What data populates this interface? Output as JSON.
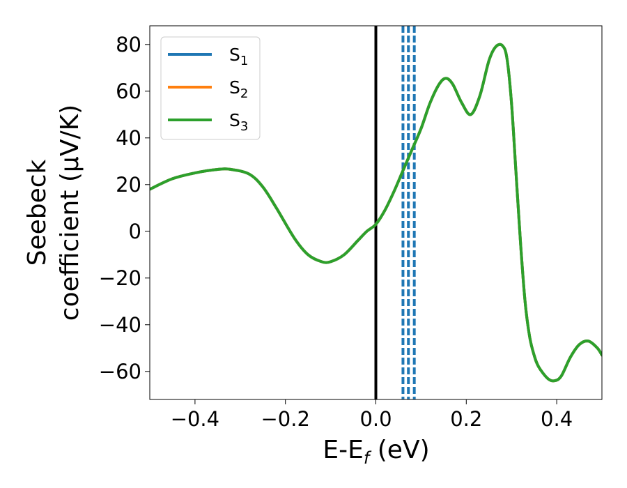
{
  "chart_data": {
    "type": "line",
    "xlabel": {
      "base": "E-E",
      "sub": "f",
      "rest": " (eV)"
    },
    "ylabel": {
      "line1": "Seebeck",
      "line2": "coefficient  (μV/K)"
    },
    "xlim": [
      -0.5,
      0.5
    ],
    "ylim": [
      -72,
      88
    ],
    "xticks": [
      -0.4,
      -0.2,
      0.0,
      0.2,
      0.4
    ],
    "xtick_labels": [
      "−0.4",
      "−0.2",
      "0.0",
      "0.2",
      "0.4"
    ],
    "yticks": [
      -60,
      -40,
      -20,
      0,
      20,
      40,
      60,
      80
    ],
    "ytick_labels": [
      "−60",
      "−40",
      "−20",
      "0",
      "20",
      "40",
      "60",
      "80"
    ],
    "grid": false,
    "legend_position": "top-left",
    "series": [
      {
        "name": "S",
        "sub": "1",
        "color": "#1f77b4",
        "x": [
          -0.5,
          -0.45,
          -0.4,
          -0.35,
          -0.32,
          -0.28,
          -0.25,
          -0.22,
          -0.18,
          -0.15,
          -0.12,
          -0.1,
          -0.07,
          -0.04,
          -0.02,
          0.0,
          0.02,
          0.04,
          0.06,
          0.08,
          0.1,
          0.12,
          0.14,
          0.155,
          0.17,
          0.19,
          0.21,
          0.23,
          0.25,
          0.265,
          0.28,
          0.29,
          0.3,
          0.31,
          0.32,
          0.33,
          0.34,
          0.35,
          0.36,
          0.38,
          0.395,
          0.41,
          0.43,
          0.45,
          0.47,
          0.49,
          0.5
        ],
        "y": [
          18,
          22.5,
          25,
          26.5,
          26.5,
          24.5,
          19,
          10,
          -3,
          -10,
          -13,
          -13,
          -10,
          -4,
          0,
          3,
          9,
          17,
          26,
          35,
          44,
          55,
          63,
          65.5,
          63,
          55,
          50,
          58,
          73,
          79,
          79.5,
          74,
          55,
          25,
          -5,
          -30,
          -45,
          -53,
          -58,
          -63,
          -64,
          -62,
          -54,
          -48.5,
          -47,
          -50,
          -53
        ]
      },
      {
        "name": "S",
        "sub": "2",
        "color": "#ff7f0e",
        "x": [
          -0.5,
          -0.45,
          -0.4,
          -0.35,
          -0.32,
          -0.28,
          -0.25,
          -0.22,
          -0.18,
          -0.15,
          -0.12,
          -0.1,
          -0.07,
          -0.04,
          -0.02,
          0.0,
          0.02,
          0.04,
          0.06,
          0.08,
          0.1,
          0.12,
          0.14,
          0.155,
          0.17,
          0.19,
          0.21,
          0.23,
          0.25,
          0.265,
          0.28,
          0.29,
          0.3,
          0.31,
          0.32,
          0.33,
          0.34,
          0.35,
          0.36,
          0.38,
          0.395,
          0.41,
          0.43,
          0.45,
          0.47,
          0.49,
          0.5
        ],
        "y": [
          18,
          22.5,
          25,
          26.5,
          26.5,
          24.5,
          19,
          10,
          -3,
          -10,
          -13,
          -13,
          -10,
          -4,
          0,
          3,
          9,
          17,
          26,
          35,
          44,
          55,
          63,
          65.5,
          63,
          55,
          50,
          58,
          73,
          79,
          79.5,
          74,
          55,
          25,
          -5,
          -30,
          -45,
          -53,
          -58,
          -63,
          -64,
          -62,
          -54,
          -48.5,
          -47,
          -50,
          -53
        ]
      },
      {
        "name": "S",
        "sub": "3",
        "color": "#2ca02c",
        "x": [
          -0.5,
          -0.45,
          -0.4,
          -0.35,
          -0.32,
          -0.28,
          -0.25,
          -0.22,
          -0.18,
          -0.15,
          -0.12,
          -0.1,
          -0.07,
          -0.04,
          -0.02,
          0.0,
          0.02,
          0.04,
          0.06,
          0.08,
          0.1,
          0.12,
          0.14,
          0.155,
          0.17,
          0.19,
          0.21,
          0.23,
          0.25,
          0.265,
          0.28,
          0.29,
          0.3,
          0.31,
          0.32,
          0.33,
          0.34,
          0.35,
          0.36,
          0.38,
          0.395,
          0.41,
          0.43,
          0.45,
          0.47,
          0.49,
          0.5
        ],
        "y": [
          18,
          22.5,
          25,
          26.5,
          26.5,
          24.5,
          19,
          10,
          -3,
          -10,
          -13,
          -13,
          -10,
          -4,
          0,
          3,
          9,
          17,
          26,
          35,
          44,
          55,
          63,
          65.5,
          63,
          55,
          50,
          58,
          73,
          79,
          79.5,
          74,
          55,
          25,
          -5,
          -30,
          -45,
          -53,
          -58,
          -63,
          -64,
          -62,
          -54,
          -48.5,
          -47,
          -50,
          -53
        ]
      }
    ],
    "reference_lines": {
      "solid_vertical_x": 0.0,
      "solid_color": "#000000",
      "dashed_vertical_x": [
        0.06,
        0.072,
        0.085
      ],
      "dashed_color": "#1f77b4"
    }
  }
}
